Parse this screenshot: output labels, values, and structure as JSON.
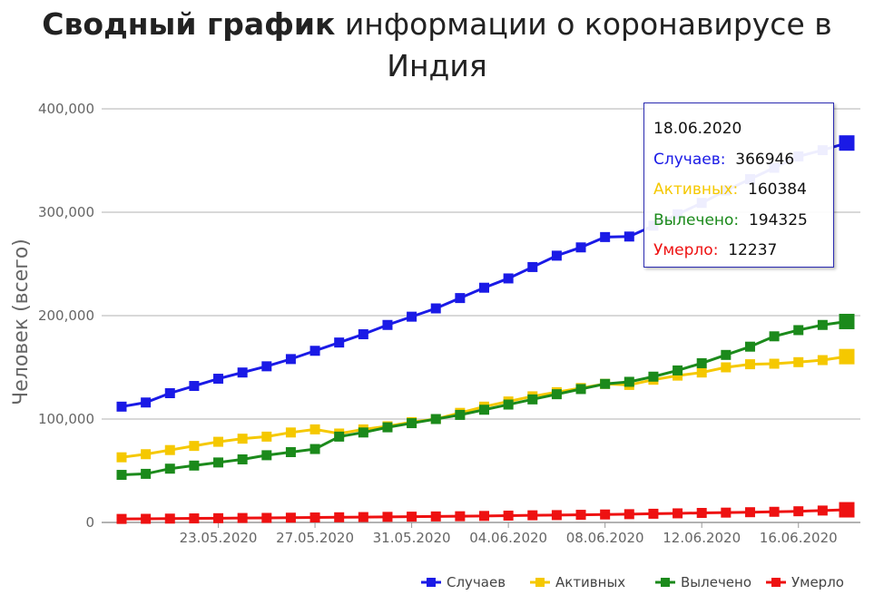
{
  "title": {
    "bold": "Сводный график",
    "rest": " информации о коронавирусе в Индия"
  },
  "chart_data": {
    "type": "line",
    "ylabel": "Человек (всего)",
    "xlabel": "",
    "ylim": [
      0,
      400000
    ],
    "yticks": [
      0,
      100000,
      200000,
      300000,
      400000
    ],
    "ytick_labels": [
      "0",
      "100,000",
      "200,000",
      "300,000",
      "400,000"
    ],
    "x": [
      "19.05.2020",
      "20.05.2020",
      "21.05.2020",
      "22.05.2020",
      "23.05.2020",
      "24.05.2020",
      "25.05.2020",
      "26.05.2020",
      "27.05.2020",
      "28.05.2020",
      "29.05.2020",
      "30.05.2020",
      "31.05.2020",
      "01.06.2020",
      "02.06.2020",
      "03.06.2020",
      "04.06.2020",
      "05.06.2020",
      "06.06.2020",
      "07.06.2020",
      "08.06.2020",
      "09.06.2020",
      "10.06.2020",
      "11.06.2020",
      "12.06.2020",
      "13.06.2020",
      "14.06.2020",
      "15.06.2020",
      "16.06.2020",
      "17.06.2020",
      "18.06.2020"
    ],
    "xtick_labels": [
      "23.05.2020",
      "27.05.2020",
      "31.05.2020",
      "04.06.2020",
      "08.06.2020",
      "12.06.2020",
      "16.06.2020"
    ],
    "grid": true,
    "legend": "bottom-right",
    "series": [
      {
        "name": "Случаев",
        "color": "#1a1ae6",
        "values": [
          112000,
          116000,
          125000,
          132000,
          139000,
          145000,
          151000,
          158000,
          166000,
          174000,
          182000,
          191000,
          199000,
          207000,
          217000,
          227000,
          236000,
          247000,
          258000,
          266000,
          276000,
          276500,
          287000,
          298000,
          309000,
          321000,
          332000,
          343000,
          354000,
          360000,
          366946
        ]
      },
      {
        "name": "Активных",
        "color": "#f5c800",
        "values": [
          63000,
          66000,
          70000,
          74000,
          78000,
          81000,
          83000,
          87000,
          90000,
          86000,
          90000,
          93000,
          97000,
          100000,
          106000,
          112000,
          117000,
          122000,
          126000,
          130000,
          134000,
          133000,
          138000,
          142000,
          145000,
          150000,
          153000,
          153500,
          155000,
          157000,
          160384
        ]
      },
      {
        "name": "Вылечено",
        "color": "#1b8a1b",
        "values": [
          46000,
          47000,
          52000,
          55000,
          58000,
          61000,
          65000,
          68000,
          71000,
          83000,
          87000,
          92000,
          96000,
          100000,
          104000,
          109000,
          114000,
          119000,
          124000,
          129000,
          134000,
          136000,
          141000,
          147000,
          154000,
          162000,
          170000,
          180000,
          186000,
          191000,
          194325
        ]
      },
      {
        "name": "Умерло",
        "color": "#ee1111",
        "values": [
          3400,
          3500,
          3700,
          3900,
          4100,
          4300,
          4400,
          4600,
          4800,
          5000,
          5200,
          5400,
          5600,
          5800,
          6000,
          6300,
          6600,
          6900,
          7100,
          7400,
          7700,
          8000,
          8400,
          8800,
          9200,
          9500,
          9900,
          10300,
          10800,
          11500,
          12237
        ]
      }
    ],
    "tooltip": {
      "date": "18.06.2020",
      "rows": [
        {
          "label": "Случаев:",
          "value": "366946",
          "color": "#1a1ae6"
        },
        {
          "label": "Активных:",
          "value": "160384",
          "color": "#f5c800"
        },
        {
          "label": "Вылечено:",
          "value": "194325",
          "color": "#1b8a1b"
        },
        {
          "label": "Умерло:",
          "value": "12237",
          "color": "#ee1111"
        }
      ]
    }
  }
}
